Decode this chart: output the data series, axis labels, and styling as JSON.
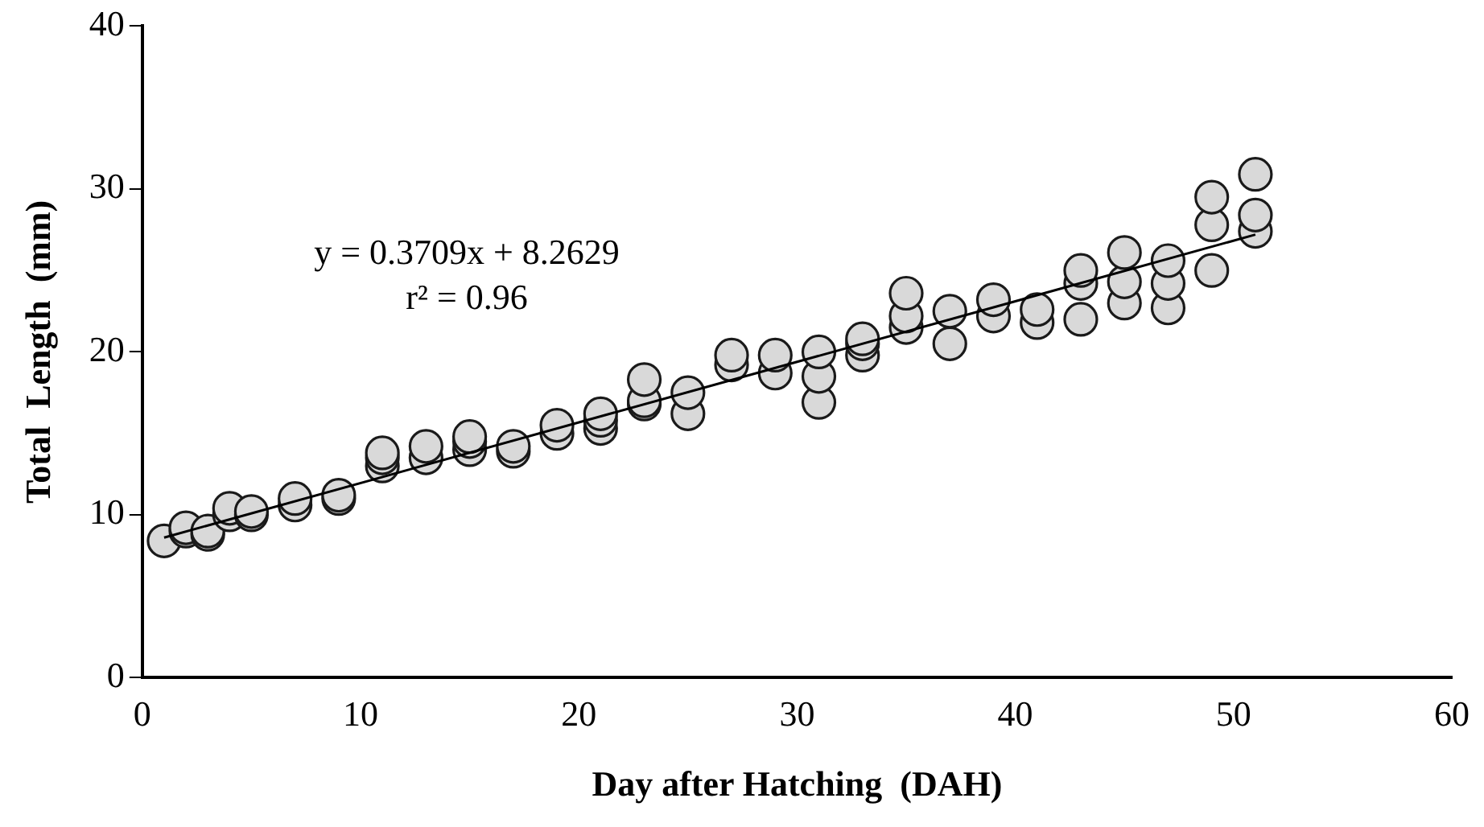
{
  "chart_data": {
    "type": "scatter",
    "xlabel": "Day after Hatching  (DAH)",
    "ylabel": "Total  Length  (mm)",
    "xlim": [
      0,
      60
    ],
    "xticks": [
      0,
      10,
      20,
      30,
      40,
      50,
      60
    ],
    "ylim": [
      0,
      40
    ],
    "yticks": [
      0,
      10,
      20,
      30,
      40
    ],
    "grid": false,
    "legend": false,
    "annotations": [
      "y = 0.3709x + 8.2629",
      "r² = 0.96"
    ],
    "series": [
      {
        "marker": "circle",
        "color": "#d9d9d9",
        "x": [
          1,
          2,
          2,
          3,
          3,
          4,
          4,
          5,
          5,
          7,
          7,
          9,
          9,
          11,
          11,
          11,
          13,
          13,
          15,
          15,
          15,
          17,
          17,
          19,
          19,
          21,
          21,
          21,
          23,
          23,
          23,
          25,
          25,
          27,
          27,
          29,
          29,
          31,
          31,
          31,
          33,
          33,
          33,
          35,
          35,
          35,
          37,
          37,
          39,
          39,
          41,
          41,
          43,
          43,
          43,
          45,
          45,
          45,
          47,
          47,
          47,
          49,
          49,
          49,
          51,
          51,
          51
        ],
        "values": [
          8.4,
          9.0,
          9.2,
          8.8,
          9.0,
          10.0,
          10.4,
          10.0,
          10.2,
          10.6,
          11.0,
          11.0,
          11.2,
          13.0,
          13.5,
          13.8,
          13.5,
          14.2,
          14.0,
          14.5,
          14.8,
          13.9,
          14.2,
          15.0,
          15.5,
          15.3,
          15.8,
          16.2,
          16.8,
          17.0,
          18.3,
          16.2,
          17.5,
          19.2,
          19.8,
          18.7,
          19.8,
          16.9,
          18.5,
          20.0,
          19.8,
          20.5,
          20.8,
          21.5,
          22.2,
          23.6,
          20.5,
          22.5,
          22.2,
          23.2,
          21.8,
          22.6,
          22.0,
          24.2,
          25.0,
          23.0,
          24.3,
          26.1,
          22.7,
          24.2,
          25.6,
          25.0,
          27.8,
          29.5,
          27.4,
          28.4,
          30.9
        ]
      },
      {
        "type": "line",
        "marker": "none",
        "color": "#000000",
        "x": [
          1,
          51
        ],
        "values": [
          8.6,
          27.2
        ]
      }
    ]
  }
}
